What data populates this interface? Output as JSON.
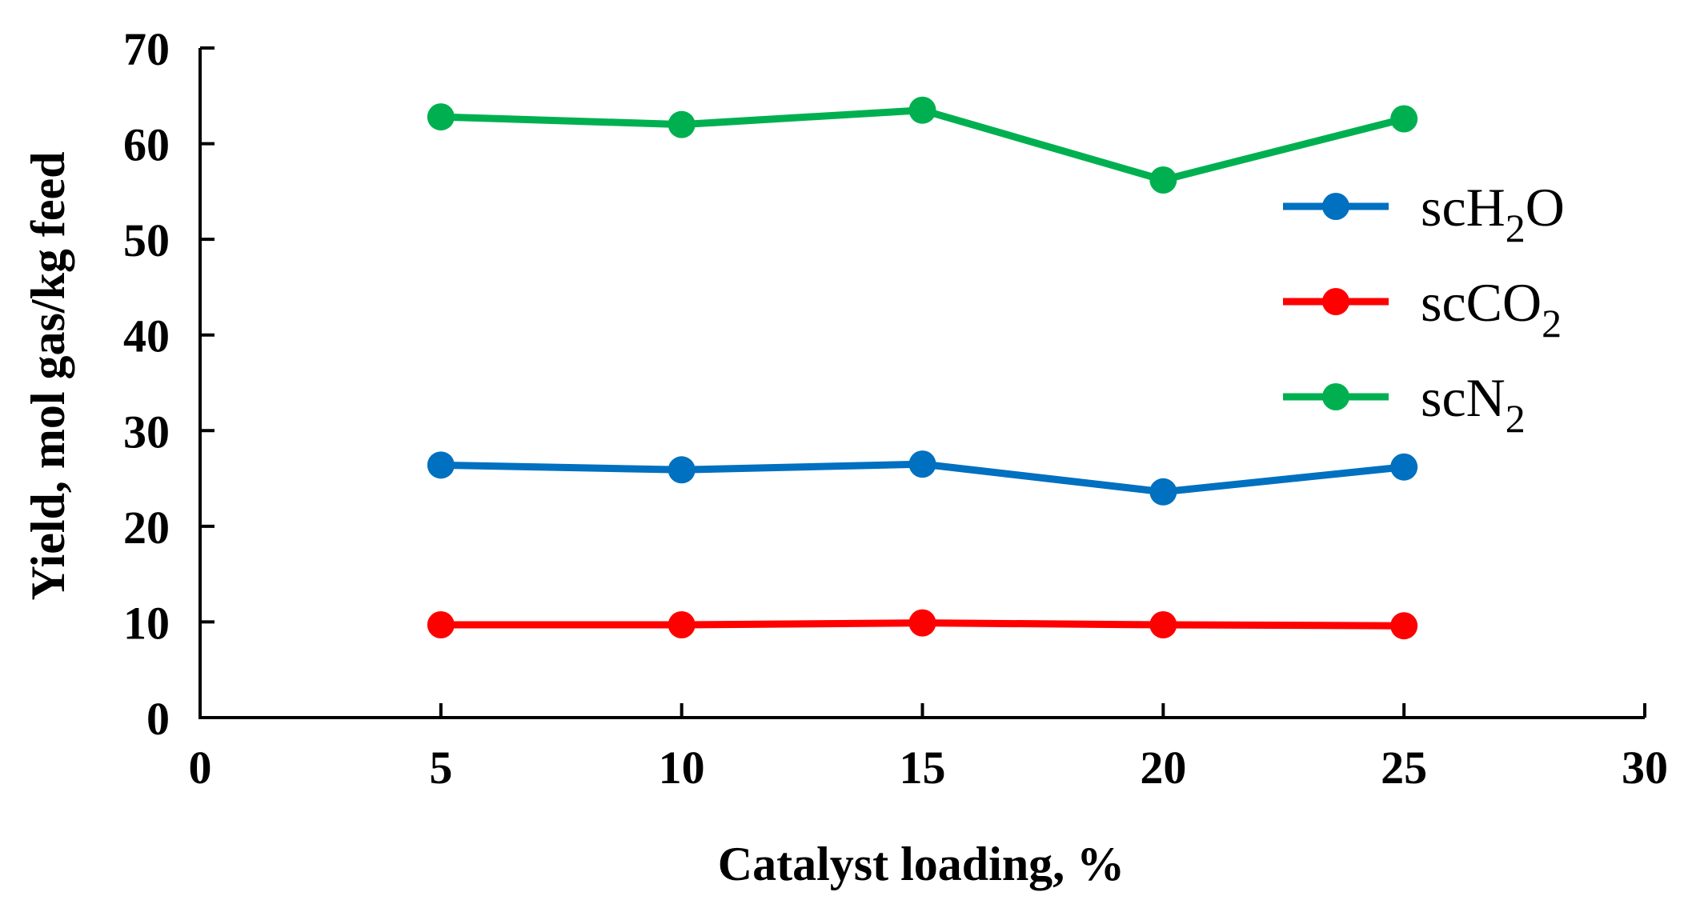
{
  "chart_data": {
    "type": "line",
    "title": "",
    "xlabel": "Catalyst loading, %",
    "ylabel": "Yield, mol gas/kg feed",
    "xlim": [
      0,
      30
    ],
    "ylim": [
      0,
      70
    ],
    "x_ticks": [
      0,
      5,
      10,
      15,
      20,
      25,
      30
    ],
    "y_ticks": [
      0,
      10,
      20,
      30,
      40,
      50,
      60,
      70
    ],
    "x": [
      5,
      10,
      15,
      20,
      25
    ],
    "grid": false,
    "legend_position": "right",
    "series": [
      {
        "name": "scH2O",
        "legend_main": "scH",
        "legend_sub": "2",
        "legend_tail": "O",
        "color": "#0070C0",
        "values": [
          26.4,
          25.9,
          26.5,
          23.6,
          26.2
        ]
      },
      {
        "name": "scCO2",
        "legend_main": "scCO",
        "legend_sub": "2",
        "legend_tail": "",
        "color": "#FF0000",
        "values": [
          9.7,
          9.7,
          9.9,
          9.7,
          9.6
        ]
      },
      {
        "name": "scN2",
        "legend_main": "scN",
        "legend_sub": "2",
        "legend_tail": "",
        "color": "#00B050",
        "values": [
          62.8,
          62.0,
          63.5,
          56.2,
          62.6
        ]
      }
    ]
  }
}
